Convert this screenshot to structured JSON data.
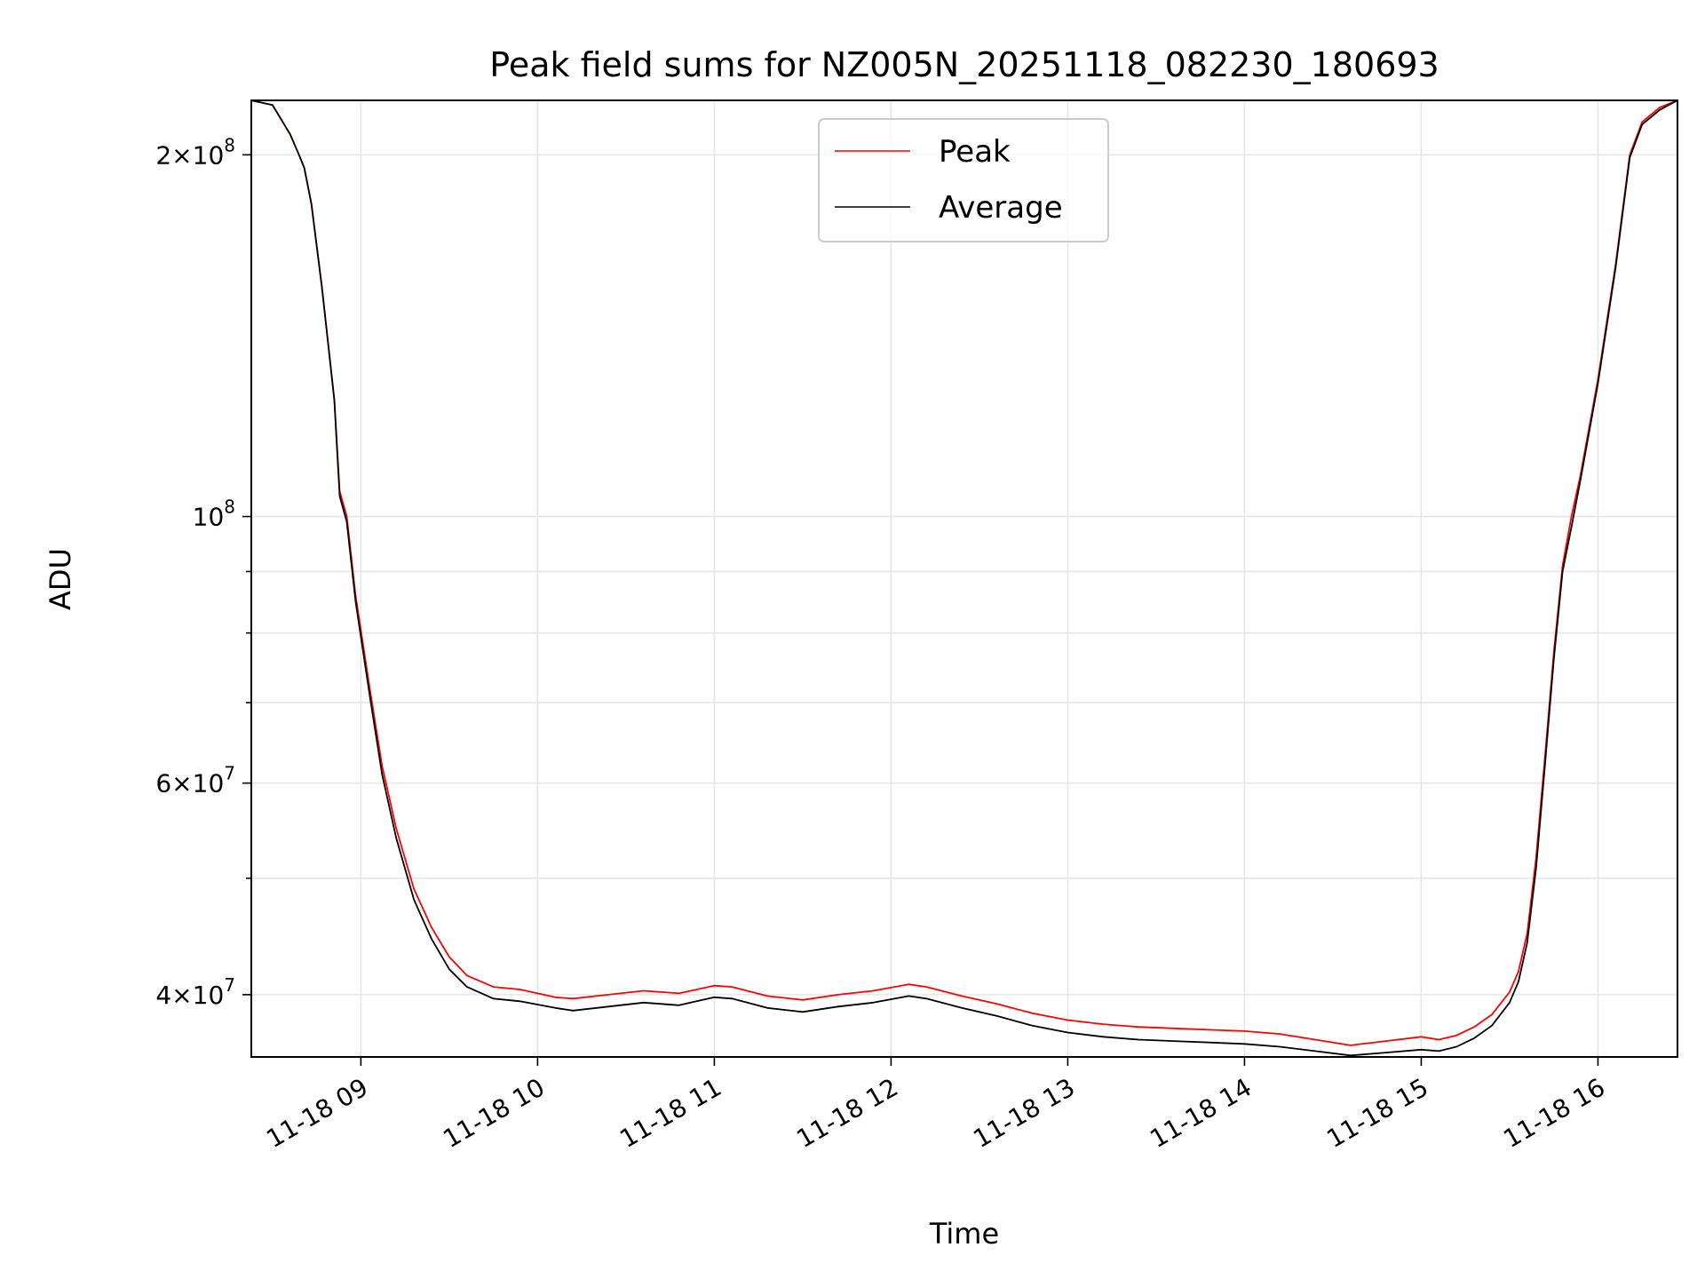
{
  "chart_data": {
    "type": "line",
    "title": "Peak field sums for NZ005N_20251118_082230_180693",
    "xlabel": "Time",
    "ylabel": "ADU",
    "yscale": "log",
    "xlim_hours": [
      8.38,
      16.45
    ],
    "ylim": [
      35500000,
      222000000
    ],
    "grid": true,
    "legend_location": "upper center",
    "x_ticks": [
      {
        "hour": 9,
        "label": "11-18 09"
      },
      {
        "hour": 10,
        "label": "11-18 10"
      },
      {
        "hour": 11,
        "label": "11-18 11"
      },
      {
        "hour": 12,
        "label": "11-18 12"
      },
      {
        "hour": 13,
        "label": "11-18 13"
      },
      {
        "hour": 14,
        "label": "11-18 14"
      },
      {
        "hour": 15,
        "label": "11-18 15"
      },
      {
        "hour": 16,
        "label": "11-18 16"
      }
    ],
    "y_major_ticks": [
      {
        "value": 40000000,
        "mant": "4",
        "exp": "7"
      },
      {
        "value": 60000000,
        "mant": "6",
        "exp": "7"
      },
      {
        "value": 100000000,
        "mant": "",
        "exp": "8"
      },
      {
        "value": 200000000,
        "mant": "2",
        "exp": "8"
      }
    ],
    "y_minor_ticks": [
      50000000,
      70000000,
      80000000,
      90000000
    ],
    "series": [
      {
        "name": "Peak",
        "color": "#ff0000",
        "x_hours": [
          8.38,
          8.5,
          8.6,
          8.65,
          8.68,
          8.72,
          8.78,
          8.85,
          8.88,
          8.92,
          8.97,
          9.05,
          9.12,
          9.2,
          9.3,
          9.4,
          9.5,
          9.6,
          9.75,
          9.9,
          10.1,
          10.2,
          10.4,
          10.6,
          10.8,
          11.0,
          11.1,
          11.3,
          11.5,
          11.7,
          11.9,
          12.1,
          12.2,
          12.4,
          12.6,
          12.8,
          13.0,
          13.2,
          13.4,
          13.6,
          13.8,
          14.0,
          14.2,
          14.4,
          14.6,
          14.8,
          15.0,
          15.1,
          15.2,
          15.3,
          15.4,
          15.5,
          15.55,
          15.6,
          15.65,
          15.7,
          15.75,
          15.8,
          15.85,
          15.9,
          16.0,
          16.1,
          16.18,
          16.25,
          16.35,
          16.45
        ],
        "values": [
          222000000,
          220000000,
          208000000,
          200000000,
          195000000,
          182000000,
          155000000,
          125000000,
          105000000,
          100000000,
          86000000,
          72000000,
          62000000,
          55000000,
          49000000,
          45500000,
          43000000,
          41500000,
          40600000,
          40400000,
          39800000,
          39700000,
          40000000,
          40300000,
          40100000,
          40700000,
          40600000,
          39900000,
          39600000,
          40000000,
          40300000,
          40800000,
          40600000,
          39900000,
          39300000,
          38600000,
          38100000,
          37800000,
          37600000,
          37500000,
          37400000,
          37300000,
          37100000,
          36700000,
          36300000,
          36600000,
          36900000,
          36700000,
          37000000,
          37600000,
          38500000,
          40200000,
          41800000,
          45000000,
          52000000,
          63000000,
          77000000,
          91000000,
          100000000,
          108000000,
          130000000,
          162000000,
          200000000,
          213000000,
          219000000,
          222000000
        ]
      },
      {
        "name": "Average",
        "color": "#000000",
        "x_hours": [
          8.38,
          8.5,
          8.6,
          8.65,
          8.68,
          8.72,
          8.78,
          8.85,
          8.88,
          8.92,
          8.97,
          9.05,
          9.12,
          9.2,
          9.3,
          9.4,
          9.5,
          9.6,
          9.75,
          9.9,
          10.1,
          10.2,
          10.4,
          10.6,
          10.8,
          11.0,
          11.1,
          11.3,
          11.5,
          11.7,
          11.9,
          12.1,
          12.2,
          12.4,
          12.6,
          12.8,
          13.0,
          13.2,
          13.4,
          13.6,
          13.8,
          14.0,
          14.2,
          14.4,
          14.6,
          14.8,
          15.0,
          15.1,
          15.2,
          15.3,
          15.4,
          15.5,
          15.55,
          15.6,
          15.65,
          15.7,
          15.75,
          15.8,
          15.85,
          15.9,
          16.0,
          16.1,
          16.18,
          16.25,
          16.35,
          16.45
        ],
        "values": [
          222000000,
          220000000,
          208000000,
          200000000,
          195000000,
          182000000,
          155000000,
          125000000,
          104000000,
          99000000,
          85000000,
          71000000,
          61000000,
          54000000,
          48000000,
          44500000,
          42000000,
          40600000,
          39700000,
          39500000,
          39000000,
          38800000,
          39100000,
          39400000,
          39200000,
          39800000,
          39700000,
          39000000,
          38700000,
          39100000,
          39400000,
          39900000,
          39700000,
          39000000,
          38400000,
          37700000,
          37200000,
          36900000,
          36700000,
          36600000,
          36500000,
          36400000,
          36200000,
          35900000,
          35600000,
          35800000,
          36000000,
          35900000,
          36200000,
          36800000,
          37700000,
          39400000,
          41000000,
          44200000,
          51000000,
          62000000,
          76000000,
          90000000,
          98000000,
          107000000,
          129000000,
          161000000,
          199000000,
          212000000,
          218000000,
          222000000
        ]
      }
    ]
  }
}
